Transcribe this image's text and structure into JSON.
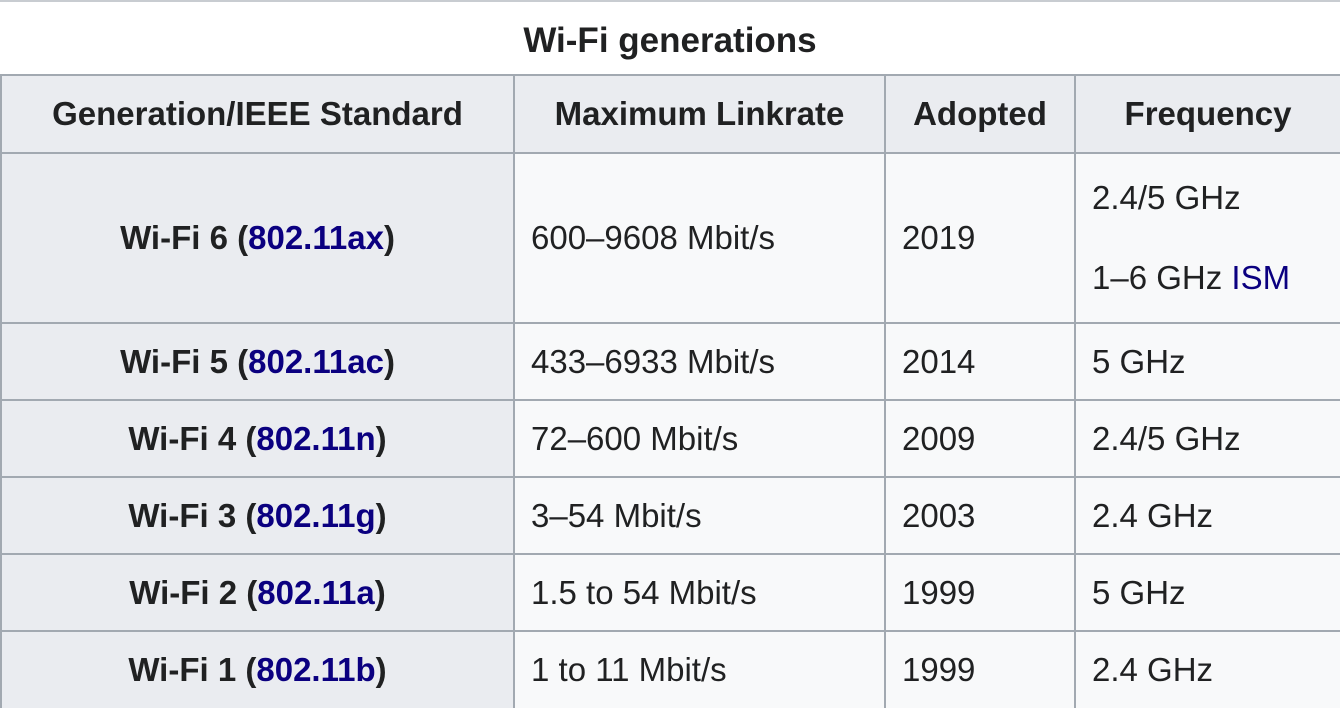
{
  "caption": "Wi-Fi generations",
  "headers": [
    "Generation/IEEE Standard",
    "Maximum Linkrate",
    "Adopted",
    "Frequency"
  ],
  "rows": [
    {
      "gen_name": "Wi-Fi 6",
      "open_paren": " (",
      "standard": "802.11ax",
      "close_paren": ")",
      "linkrate": "600–9608 Mbit/s",
      "adopted": "2019",
      "frequency": "2.4/5 GHz",
      "frequency_line2": "1–6 GHz",
      "frequency_line2_link": "ISM"
    },
    {
      "gen_name": "Wi-Fi 5",
      "open_paren": " (",
      "standard": "802.11ac",
      "close_paren": ")",
      "linkrate": "433–6933 Mbit/s",
      "adopted": "2014",
      "frequency": "5 GHz"
    },
    {
      "gen_name": "Wi-Fi 4",
      "open_paren": " (",
      "standard": "802.11n",
      "close_paren": ")",
      "linkrate": "72–600 Mbit/s",
      "adopted": "2009",
      "frequency": "2.4/5 GHz"
    },
    {
      "gen_name": "Wi-Fi 3",
      "open_paren": " (",
      "standard": "802.11g",
      "close_paren": ")",
      "linkrate": "3–54 Mbit/s",
      "adopted": "2003",
      "frequency": "2.4 GHz"
    },
    {
      "gen_name": "Wi-Fi 2",
      "open_paren": " (",
      "standard": "802.11a",
      "close_paren": ")",
      "linkrate": "1.5 to 54 Mbit/s",
      "adopted": "1999",
      "frequency": "5 GHz"
    },
    {
      "gen_name": "Wi-Fi 1",
      "open_paren": " (",
      "standard": "802.11b",
      "close_paren": ")",
      "linkrate": "1 to 11 Mbit/s",
      "adopted": "1999",
      "frequency": "2.4 GHz"
    }
  ],
  "colors": {
    "link": "#0b0080",
    "header_bg": "#eaecf0",
    "cell_bg": "#f8f9fa",
    "border": "#a2a9b1",
    "text": "#202122"
  }
}
